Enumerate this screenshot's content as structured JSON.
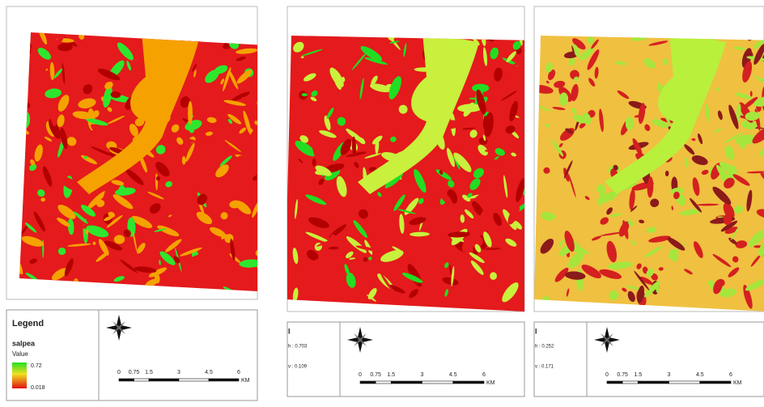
{
  "panels": [
    {
      "legend": {
        "title": "Legend",
        "layer": "salpea",
        "field": "Value",
        "high": "0.72",
        "low": "0.018"
      },
      "scale": {
        "labels": [
          "0",
          "0.75",
          "1.5",
          "3",
          "4.5",
          "6"
        ],
        "unit": "KM"
      }
    },
    {
      "legend": {
        "title": "l",
        "high": "h : 0.703",
        "low": "v : 0.109"
      },
      "scale": {
        "labels": [
          "0",
          "0.75",
          "1.5",
          "3",
          "4.5",
          "6"
        ],
        "unit": "KM"
      }
    },
    {
      "legend": {
        "title": "l",
        "high": "h : 0.252",
        "low": "v : 0.171"
      },
      "scale": {
        "labels": [
          "0",
          "0.75",
          "1.5",
          "3",
          "4.5",
          "6"
        ],
        "unit": "KM"
      }
    }
  ]
}
